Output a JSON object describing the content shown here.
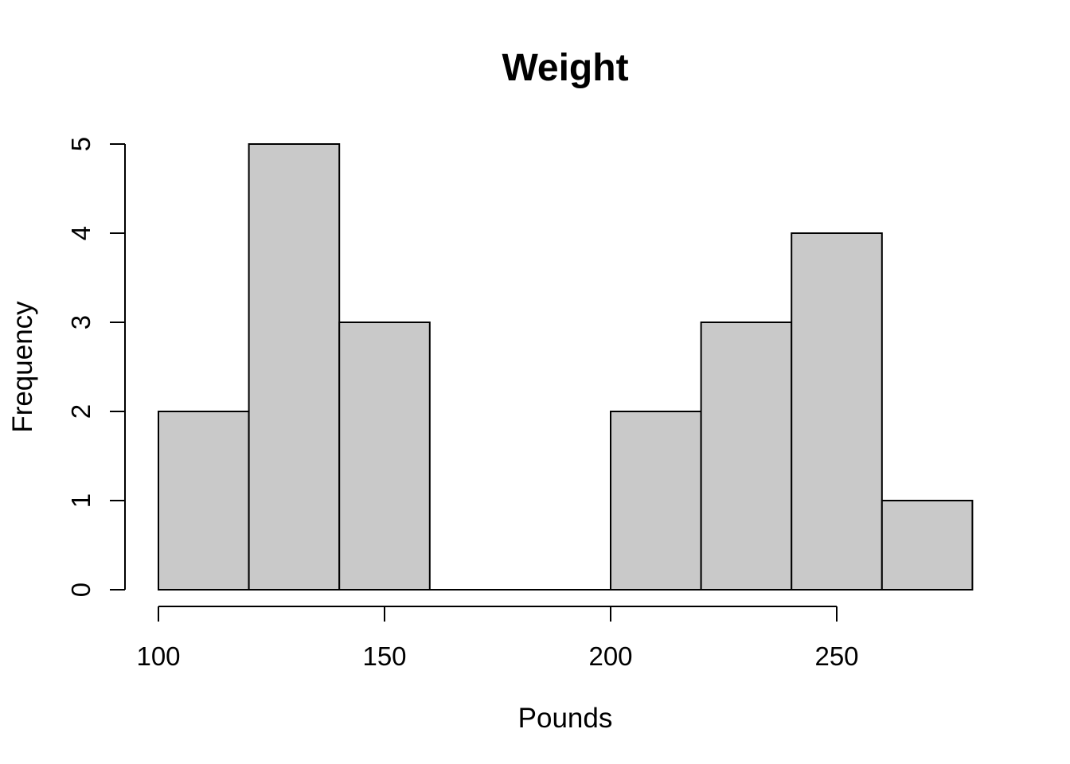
{
  "page": {
    "background": "#ffffff"
  },
  "chart_data": {
    "type": "histogram",
    "title": "Weight",
    "xlabel": "Pounds",
    "ylabel": "Frequency",
    "bin_edges": [
      100,
      120,
      140,
      160,
      180,
      200,
      220,
      240,
      260,
      280
    ],
    "counts": [
      2,
      5,
      3,
      0,
      0,
      2,
      3,
      4,
      1
    ],
    "x_ticks": [
      100,
      150,
      200,
      250
    ],
    "y_ticks": [
      0,
      1,
      2,
      3,
      4,
      5
    ],
    "xlim": [
      100,
      280
    ],
    "ylim": [
      0,
      5
    ],
    "x_axis_line_range": [
      100,
      250
    ],
    "grid": false,
    "legend": null,
    "bar_fill": "#c9c9c9",
    "bar_stroke": "#000000",
    "axis_color": "#000000"
  }
}
